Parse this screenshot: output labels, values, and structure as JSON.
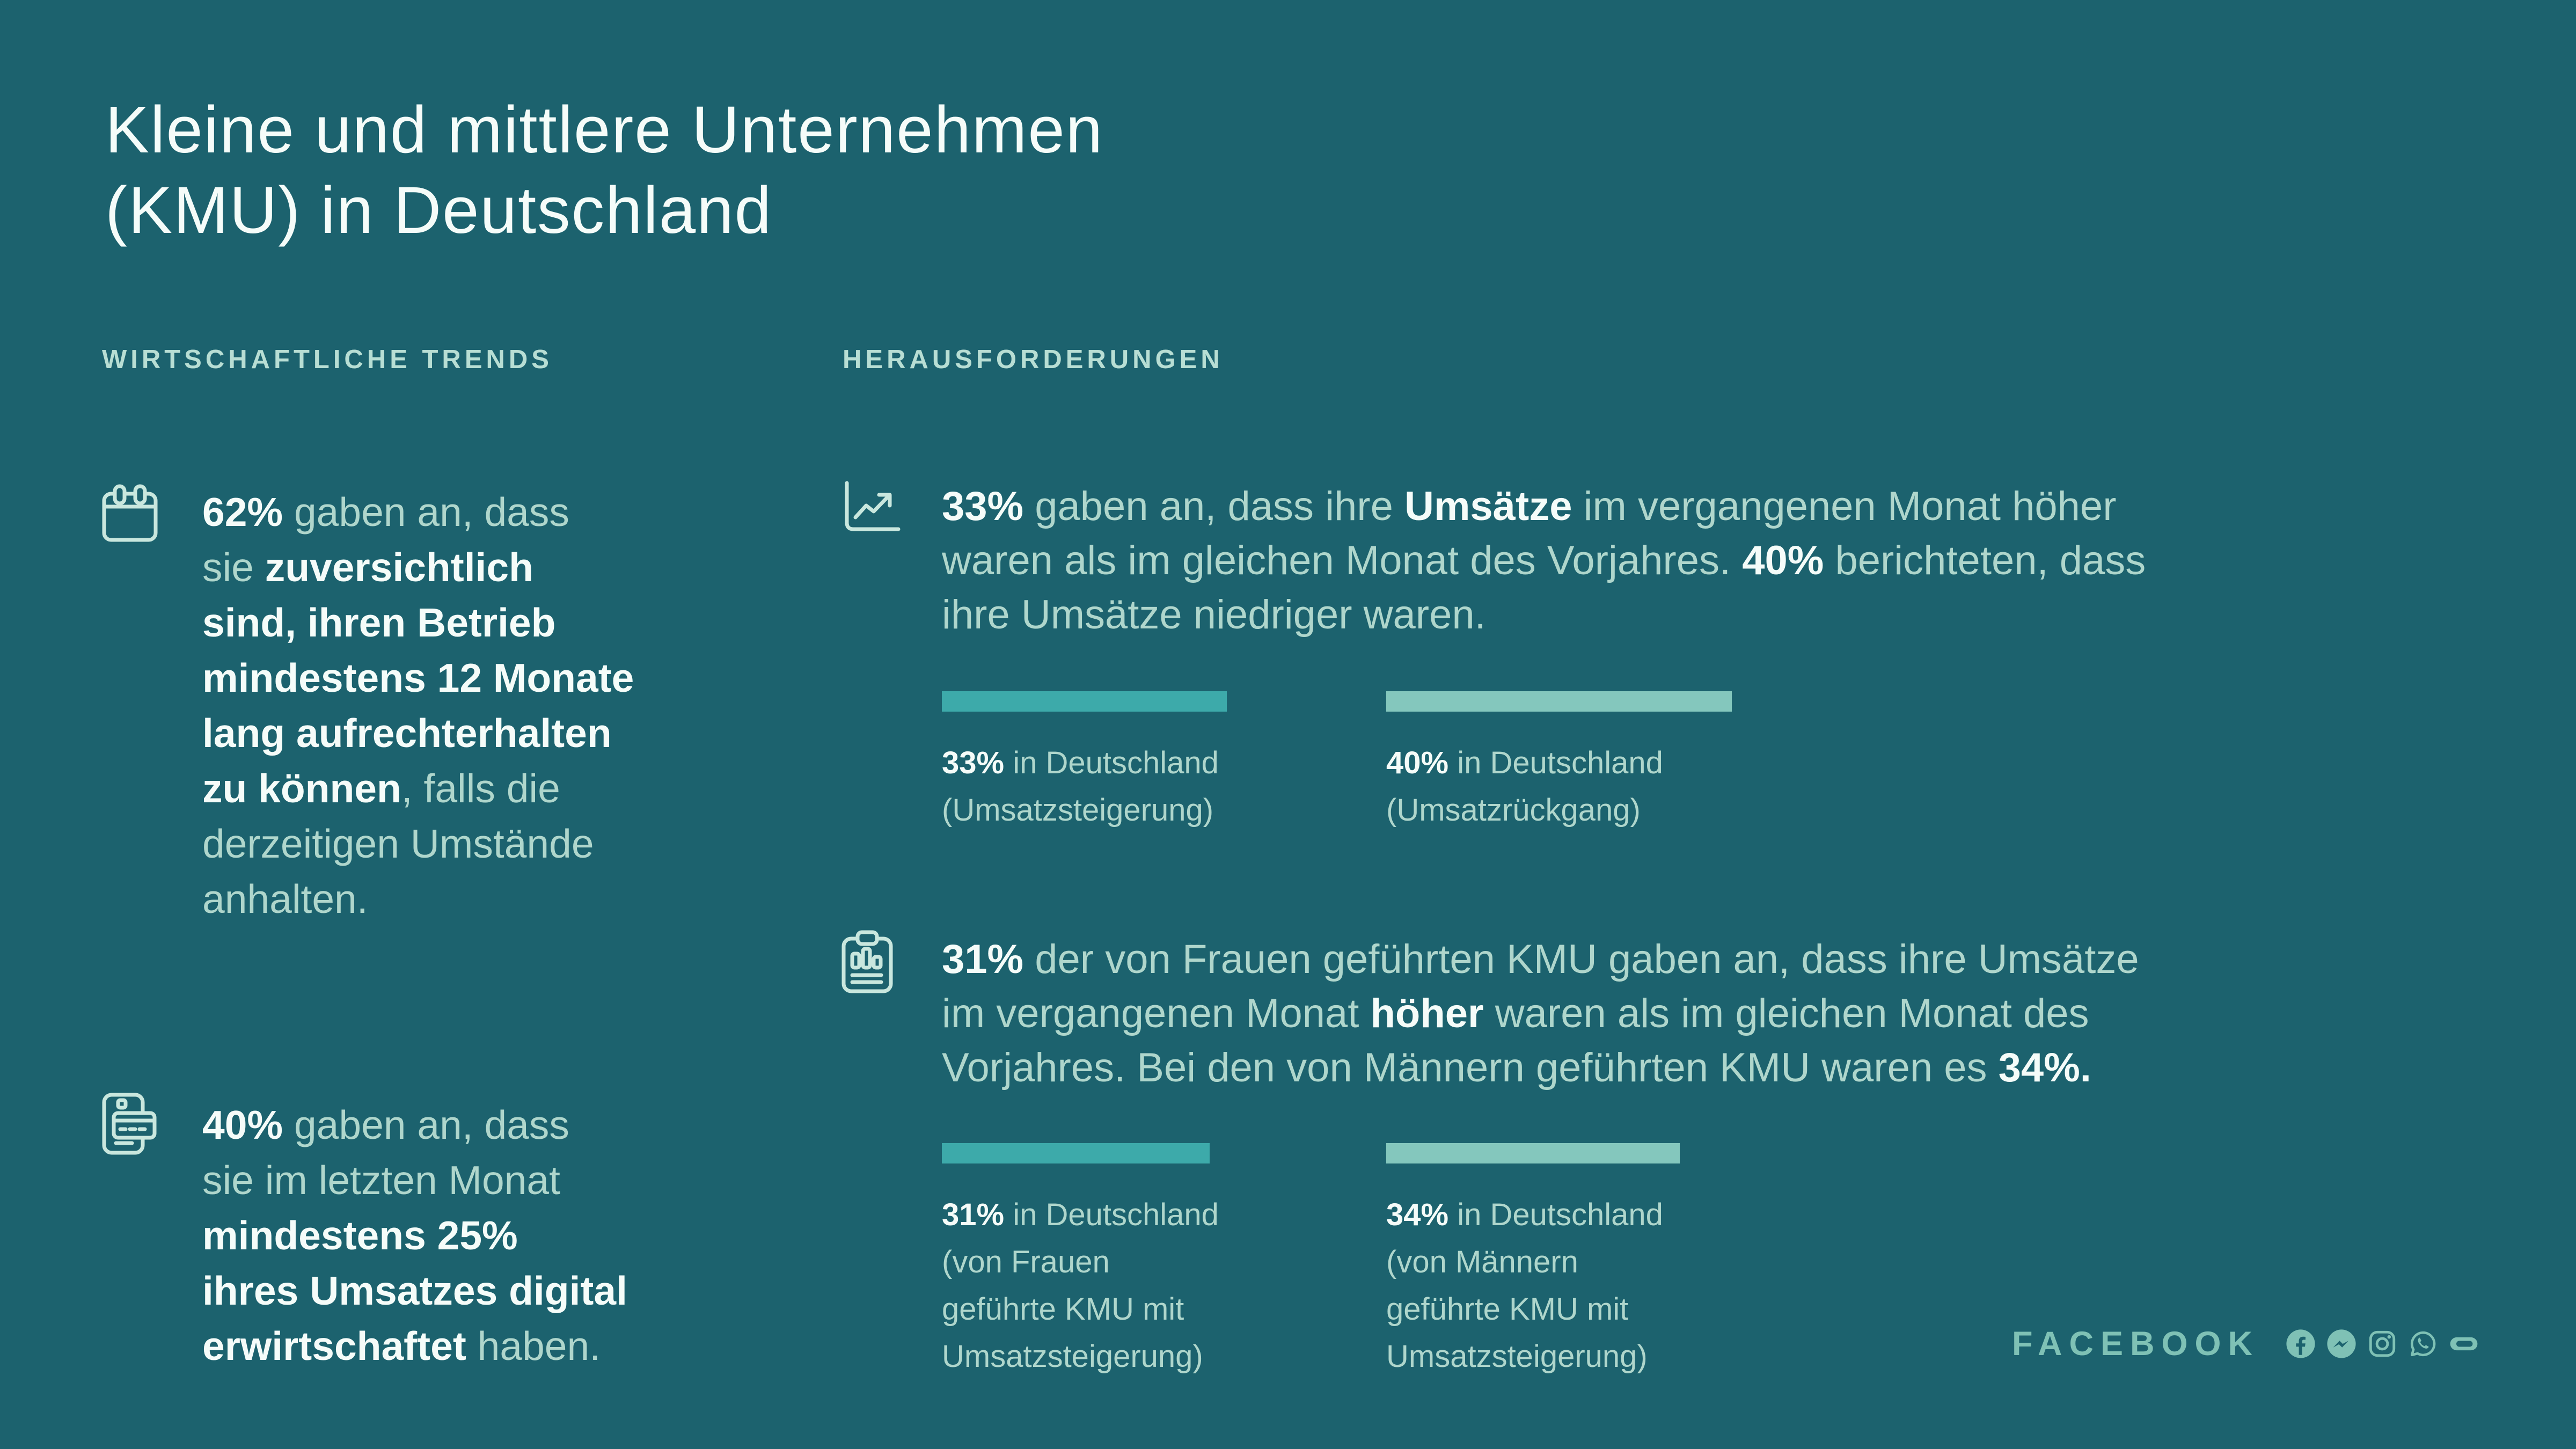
{
  "colors": {
    "background": "#1C626E",
    "text_regular": "#AFD6CC",
    "text_bold": "#F5FCF9",
    "header": "#B8DED4",
    "icon_stroke": "#C9E7DE",
    "bar_dark": "#3DAAAA",
    "bar_light": "#84C7BD",
    "brand": "#7FC1B5"
  },
  "title": "Kleine und mittlere Unternehmen\n(KMU) in Deutschland",
  "left_section": {
    "header": "WIRTSCHAFTLICHE TRENDS",
    "items": [
      {
        "icon": "calendar-icon",
        "segments": [
          {
            "text": "62%",
            "bold": true
          },
          {
            "text": " gaben an, dass\nsie ",
            "bold": false
          },
          {
            "text": "zuversichtlich\nsind, ihren Betrieb\nmindestens 12 Monate\nlang aufrechterhalten\nzu können",
            "bold": true
          },
          {
            "text": ", falls die\nderzeitigen Umstände\nanhalten.",
            "bold": false
          }
        ]
      },
      {
        "icon": "mobile-payment-icon",
        "segments": [
          {
            "text": "40%",
            "bold": true
          },
          {
            "text": " gaben an, dass\nsie im letzten Monat\n",
            "bold": false
          },
          {
            "text": "mindestens 25%\nihres Umsatzes digital\nerwirtschaftet",
            "bold": true
          },
          {
            "text": " haben.",
            "bold": false
          }
        ]
      }
    ]
  },
  "right_section": {
    "header": "HERAUSFORDERUNGEN",
    "items": [
      {
        "icon": "line-chart-icon",
        "segments": [
          {
            "text": "33%",
            "bold": true
          },
          {
            "text": " gaben an, dass ihre ",
            "bold": false
          },
          {
            "text": "Umsätze",
            "bold": true
          },
          {
            "text": " im vergangenen Monat höher\nwaren als im gleichen Monat des Vorjahres. ",
            "bold": false
          },
          {
            "text": "40%",
            "bold": true
          },
          {
            "text": " berichteten, dass\nihre Umsätze niedriger waren.",
            "bold": false
          }
        ],
        "bars": [
          {
            "value": 33,
            "color_key": "bar_dark",
            "label_segments": [
              {
                "text": "33%",
                "bold": true
              },
              {
                "text": " in Deutschland\n(Umsatzsteigerung)",
                "bold": false
              }
            ]
          },
          {
            "value": 40,
            "color_key": "bar_light",
            "label_segments": [
              {
                "text": "40%",
                "bold": true
              },
              {
                "text": " in Deutschland\n(Umsatzrückgang)",
                "bold": false
              }
            ]
          }
        ]
      },
      {
        "icon": "report-clipboard-icon",
        "segments": [
          {
            "text": "31%",
            "bold": true
          },
          {
            "text": " der von Frauen geführten KMU gaben an, dass ihre Umsätze\nim vergangenen Monat ",
            "bold": false
          },
          {
            "text": "höher",
            "bold": true
          },
          {
            "text": " waren als im gleichen Monat des\nVorjahres. Bei den von Männern geführten KMU waren es ",
            "bold": false
          },
          {
            "text": "34%.",
            "bold": true
          }
        ],
        "bars": [
          {
            "value": 31,
            "color_key": "bar_dark",
            "label_segments": [
              {
                "text": "31%",
                "bold": true
              },
              {
                "text": " in Deutschland\n(von Frauen\ngeführte KMU mit\nUmsatzsteigerung)",
                "bold": false
              }
            ]
          },
          {
            "value": 34,
            "color_key": "bar_light",
            "label_segments": [
              {
                "text": "34%",
                "bold": true
              },
              {
                "text": " in Deutschland\n(von Männern\ngeführte KMU mit\nUmsatzsteigerung)",
                "bold": false
              }
            ]
          }
        ]
      }
    ]
  },
  "footer": {
    "brand": "FACEBOOK",
    "social_icons": [
      "facebook-icon",
      "messenger-icon",
      "instagram-icon",
      "whatsapp-icon",
      "oculus-icon"
    ]
  },
  "chart_data": [
    {
      "type": "bar",
      "title": "Umsätze im Vergleich zum Vorjahresmonat (Deutschland)",
      "categories": [
        "Umsatzsteigerung",
        "Umsatzrückgang"
      ],
      "values": [
        33,
        40
      ],
      "unit": "%",
      "orientation": "horizontal",
      "xlim": [
        0,
        100
      ],
      "bar_colors": [
        "#3DAAAA",
        "#84C7BD"
      ],
      "grid": false,
      "legend": "none"
    },
    {
      "type": "bar",
      "title": "KMU mit Umsatzsteigerung nach Führung (Deutschland)",
      "categories": [
        "von Frauen geführte KMU",
        "von Männern geführte KMU"
      ],
      "values": [
        31,
        34
      ],
      "unit": "%",
      "orientation": "horizontal",
      "xlim": [
        0,
        100
      ],
      "bar_colors": [
        "#3DAAAA",
        "#84C7BD"
      ],
      "grid": false,
      "legend": "none"
    }
  ]
}
